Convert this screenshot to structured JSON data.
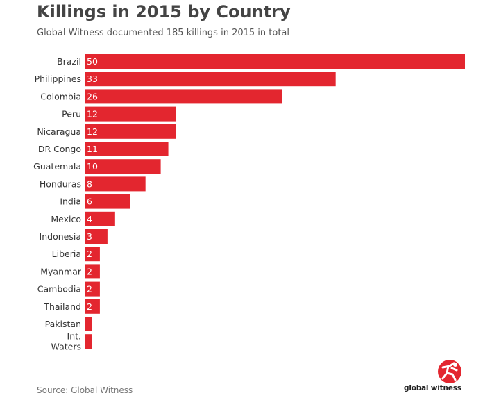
{
  "title": "Killings in 2015 by Country",
  "subtitle": "Global Witness documented 185 killings in 2015 in total",
  "source": "Source: Global Witness",
  "logo_text": "global witness",
  "colors": {
    "bar": "#e3262f",
    "label": "#333333",
    "value_label": "#ffffff"
  },
  "chart_data": {
    "type": "bar",
    "orientation": "horizontal",
    "title": "Killings in 2015 by Country",
    "subtitle": "Global Witness documented 185 killings in 2015 in total",
    "categories": [
      "Brazil",
      "Philippines",
      "Colombia",
      "Peru",
      "Nicaragua",
      "DR Congo",
      "Guatemala",
      "Honduras",
      "India",
      "Mexico",
      "Indonesia",
      "Liberia",
      "Myanmar",
      "Cambodia",
      "Thailand",
      "Pakistan",
      "Int.\nWaters"
    ],
    "values": [
      50,
      33,
      26,
      12,
      12,
      11,
      10,
      8,
      6,
      4,
      3,
      2,
      2,
      2,
      2,
      1,
      1
    ],
    "data_labels": [
      "50",
      "33",
      "26",
      "12",
      "12",
      "11",
      "10",
      "8",
      "6",
      "4",
      "3",
      "2",
      "2",
      "2",
      "2",
      "",
      ""
    ],
    "xlim": [
      0,
      50
    ],
    "grid": false,
    "legend": "none"
  }
}
